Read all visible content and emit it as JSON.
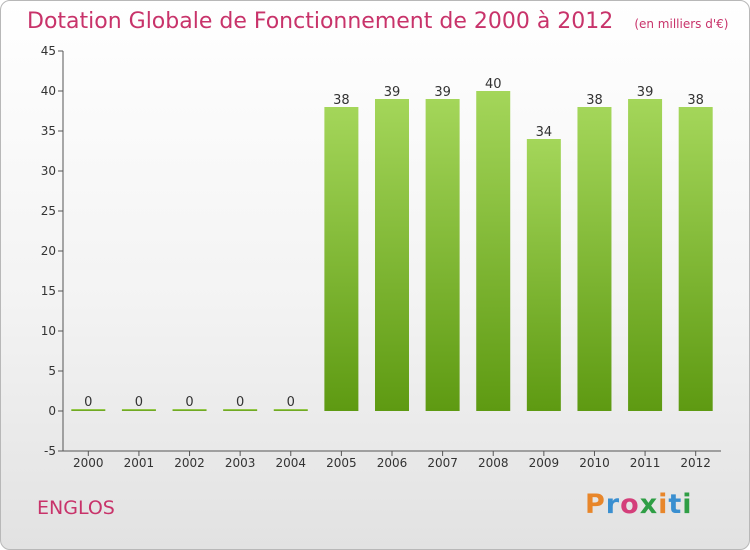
{
  "header": {
    "title": "Dotation Globale de Fonctionnement de 2000 à 2012",
    "unit": "(en milliers d'€)"
  },
  "footer": {
    "commune": "ENGLOS",
    "logo": {
      "letters": [
        "P",
        "r",
        "o",
        "x",
        "i",
        "t",
        "i"
      ],
      "colors": [
        "#e8862a",
        "#3a8fd0",
        "#d43f7a",
        "#2f9e45",
        "#e8862a",
        "#3a8fd0",
        "#2f9e45"
      ]
    }
  },
  "chart_data": {
    "type": "bar",
    "categories": [
      "2000",
      "2001",
      "2002",
      "2003",
      "2004",
      "2005",
      "2006",
      "2007",
      "2008",
      "2009",
      "2010",
      "2011",
      "2012"
    ],
    "values": [
      0,
      0,
      0,
      0,
      0,
      38,
      39,
      39,
      40,
      34,
      38,
      39,
      38
    ],
    "data_labels": [
      "0",
      "0",
      "0",
      "0",
      "0",
      "38",
      "39",
      "39",
      "40",
      "34",
      "38",
      "39",
      "38"
    ],
    "yticks": [
      -5,
      0,
      5,
      10,
      15,
      20,
      25,
      30,
      35,
      40,
      45
    ],
    "ylim": [
      -5,
      45
    ],
    "grid": false,
    "colors": {
      "bar_top": "#a4d65a",
      "bar_bottom": "#5e9a12",
      "axis": "#555555",
      "text": "#333333"
    }
  }
}
